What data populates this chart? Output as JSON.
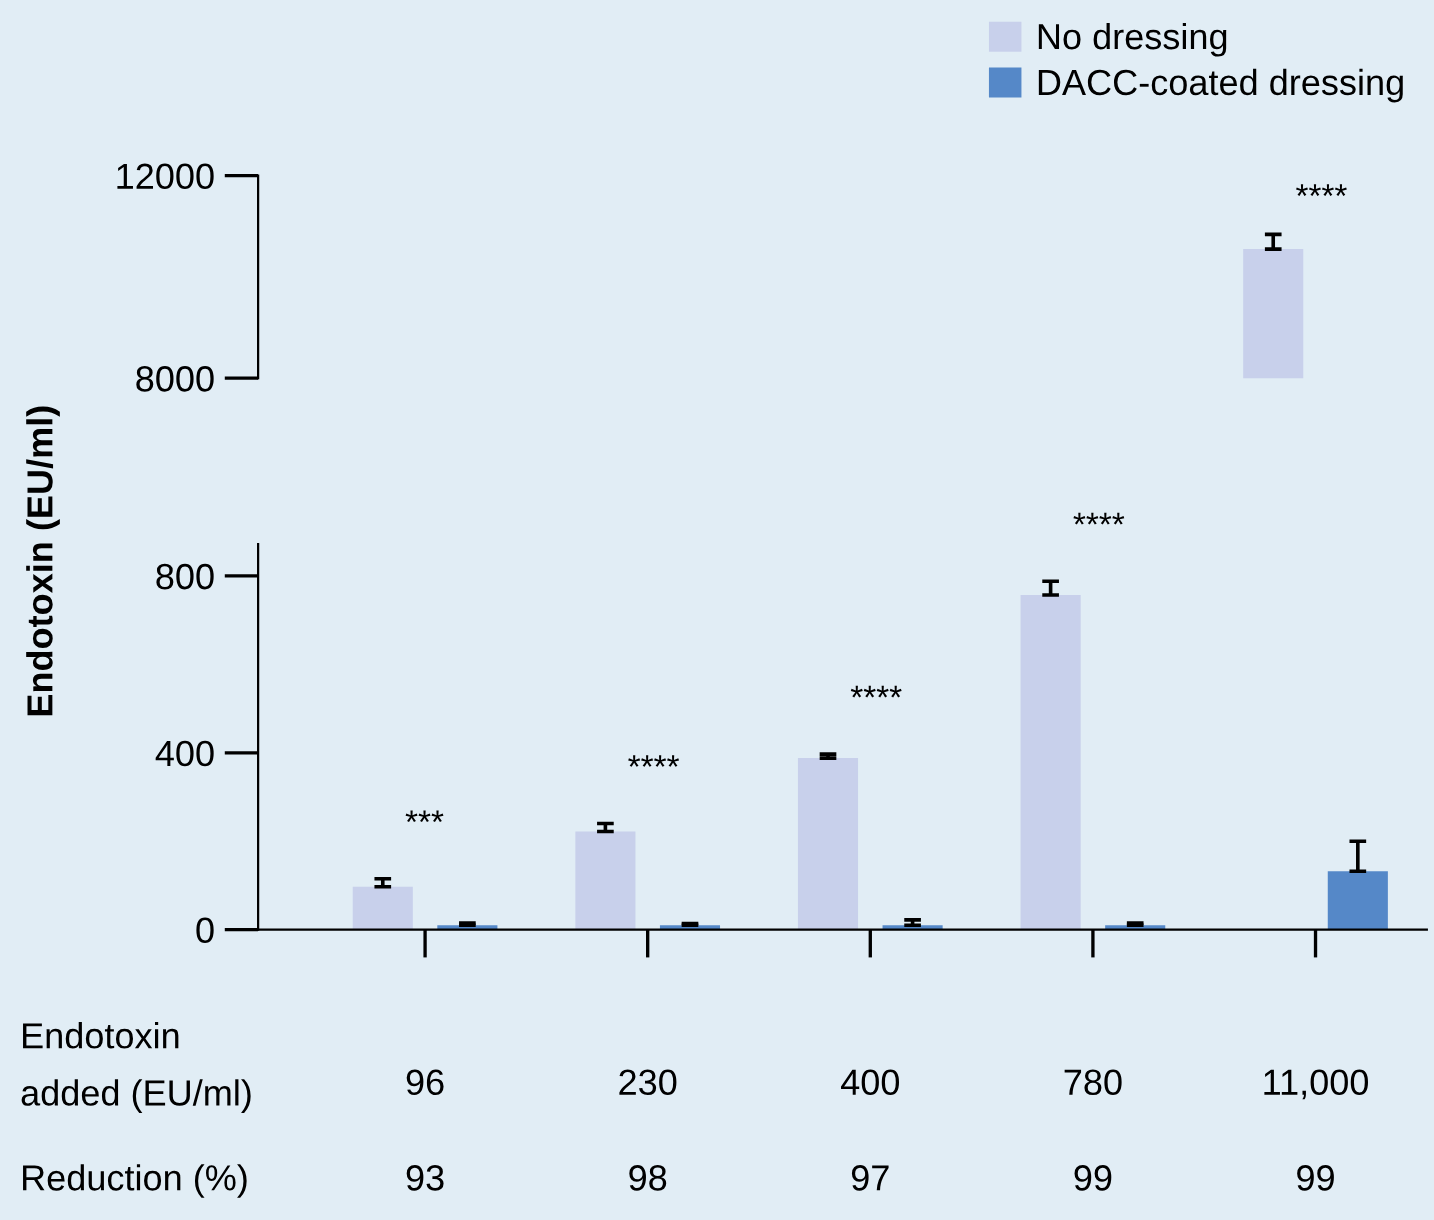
{
  "chart_data": [
    {
      "type": "bar",
      "categories": [
        "96",
        "230",
        "400",
        "780",
        "11,000"
      ],
      "ylim": [
        8000,
        12000
      ],
      "yticks": [
        8000,
        12000
      ],
      "tick_labels": "y",
      "series": [
        {
          "color": "#c8d0eb",
          "values": [
            null,
            null,
            null,
            null,
            10550
          ],
          "errors": [
            null,
            null,
            null,
            null,
            290
          ]
        }
      ],
      "annotations": [
        "****"
      ]
    },
    {
      "type": "bar",
      "categories": [
        "96",
        "230",
        "400",
        "780",
        "11,000"
      ],
      "ylim": [
        0,
        872
      ],
      "yticks": [
        0,
        400,
        800
      ],
      "xlabel": "Endotoxin added (EU/ml)",
      "ylabel": "Endotoxin (EU/ml)",
      "legend": "top right",
      "series": [
        {
          "name": "No dressing",
          "color": "#c8d0eb",
          "values": [
            97,
            222,
            388,
            757,
            null
          ],
          "errors": [
            18,
            18,
            9,
            31,
            null
          ]
        },
        {
          "name": "DACC-coated dressing",
          "color": "#5588c8",
          "values": [
            10,
            10,
            10,
            10,
            132
          ],
          "errors": [
            5,
            4,
            12,
            5,
            68
          ]
        }
      ],
      "annotations": [
        "***",
        "****",
        "****",
        "****",
        "Reduction (%)",
        "93",
        "98",
        "97",
        "99",
        "99"
      ]
    }
  ]
}
